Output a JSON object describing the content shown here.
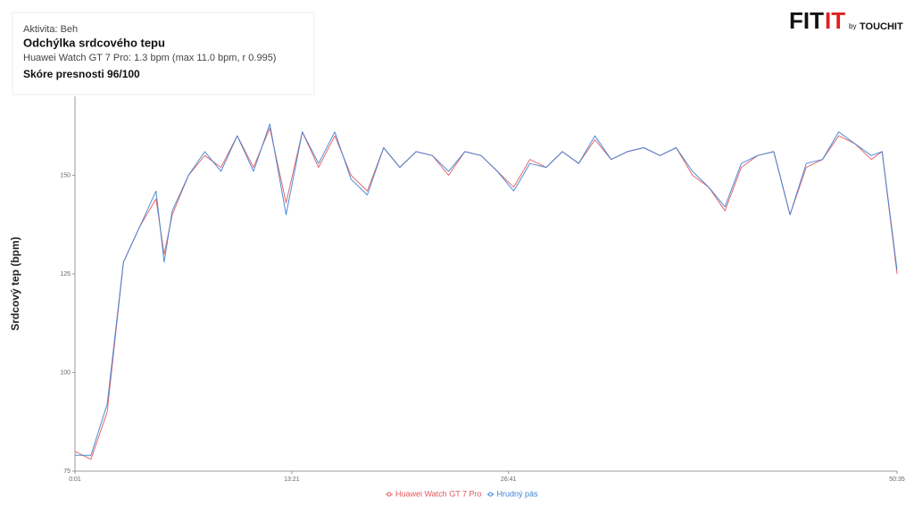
{
  "header": {
    "activity": "Aktivita: Beh",
    "title": "Odchýlka srdcového tepu",
    "subtitle": "Huawei Watch GT 7 Pro: 1.3 bpm  (max 11.0 bpm, r 0.995)",
    "score": "Skóre presnosti 96/100"
  },
  "logo": {
    "fit": "FIT",
    "it": "IT",
    "by": "by",
    "brand": "TOUCHIT"
  },
  "chart_data": {
    "type": "line",
    "y_label": "Srdcový tep (bpm)",
    "x": [
      1,
      60,
      120,
      180,
      240,
      300,
      330,
      360,
      420,
      480,
      540,
      600,
      660,
      720,
      780,
      840,
      900,
      960,
      1020,
      1080,
      1140,
      1200,
      1260,
      1320,
      1380,
      1440,
      1500,
      1560,
      1620,
      1680,
      1740,
      1800,
      1860,
      1920,
      1980,
      2040,
      2100,
      2160,
      2220,
      2280,
      2340,
      2400,
      2460,
      2520,
      2580,
      2640,
      2700,
      2760,
      2820,
      2880,
      2940,
      2980,
      3035
    ],
    "series": [
      {
        "name": "Huawei Watch GT 7 Pro",
        "color": "#e05a5c",
        "values": [
          80,
          78,
          90,
          128,
          137,
          144,
          130,
          140,
          150,
          155,
          152,
          160,
          152,
          162,
          143,
          161,
          152,
          160,
          150,
          146,
          157,
          152,
          156,
          155,
          150,
          156,
          155,
          151,
          147,
          154,
          152,
          156,
          153,
          159,
          154,
          156,
          157,
          155,
          157,
          150,
          147,
          141,
          152,
          155,
          156,
          140,
          152,
          154,
          160,
          158,
          154,
          156,
          125
        ]
      },
      {
        "name": "Hrudný pás",
        "color": "#3b7fd6",
        "values": [
          79,
          79,
          92,
          128,
          137,
          146,
          128,
          141,
          150,
          156,
          151,
          160,
          151,
          163,
          140,
          161,
          153,
          161,
          149,
          145,
          157,
          152,
          156,
          155,
          151,
          156,
          155,
          151,
          146,
          153,
          152,
          156,
          153,
          160,
          154,
          156,
          157,
          155,
          157,
          151,
          147,
          142,
          153,
          155,
          156,
          140,
          153,
          154,
          161,
          158,
          155,
          156,
          126
        ]
      }
    ],
    "xlim": [
      1,
      3035
    ],
    "xticks": [
      {
        "value": 1,
        "label": "0:01"
      },
      {
        "value": 801,
        "label": "13:21"
      },
      {
        "value": 1601,
        "label": "26:41"
      },
      {
        "value": 3035,
        "label": "50:35"
      }
    ],
    "ylim": [
      75,
      170
    ],
    "yticks": [
      75,
      100,
      125,
      150
    ],
    "legend": "bottom"
  }
}
